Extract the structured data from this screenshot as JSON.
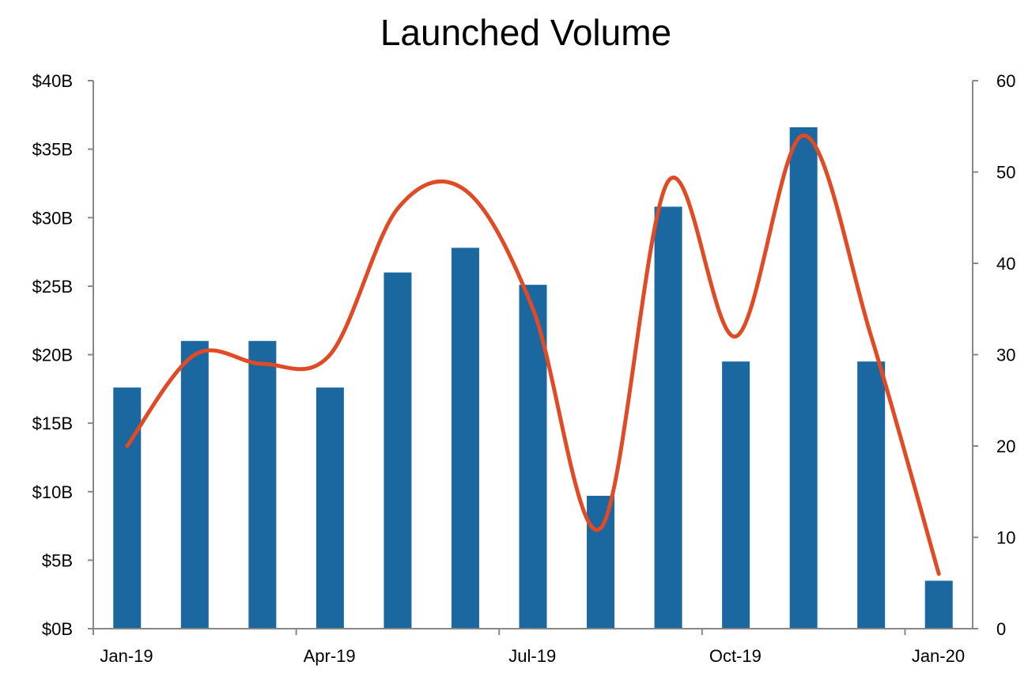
{
  "chart_data": {
    "type": "bar",
    "title": "Launched Volume",
    "x": [
      "Jan-19",
      "Feb-19",
      "Mar-19",
      "Apr-19",
      "May-19",
      "Jun-19",
      "Jul-19",
      "Aug-19",
      "Sep-19",
      "Oct-19",
      "Nov-19",
      "Dec-19",
      "Jan-20"
    ],
    "x_tick_labels": [
      "Jan-19",
      "Apr-19",
      "Jul-19",
      "Oct-19",
      "Jan-20"
    ],
    "series": [
      {
        "type": "bar",
        "axis": "left",
        "color": "#1b67a0",
        "values": [
          17.6,
          21.0,
          21.0,
          17.6,
          26.0,
          27.8,
          25.1,
          9.7,
          30.8,
          19.5,
          36.6,
          19.5,
          3.5
        ]
      },
      {
        "type": "line",
        "axis": "right",
        "color": "#e04a25",
        "smooth": true,
        "values": [
          20,
          30,
          29,
          30,
          46,
          48,
          35,
          11,
          49,
          32,
          54,
          32,
          6
        ]
      }
    ],
    "y_left": {
      "lim": [
        0,
        40
      ],
      "ticks": [
        0,
        5,
        10,
        15,
        20,
        25,
        30,
        35,
        40
      ],
      "tick_labels": [
        "$0B",
        "$5B",
        "$10B",
        "$15B",
        "$20B",
        "$25B",
        "$30B",
        "$35B",
        "$40B"
      ]
    },
    "y_right": {
      "lim": [
        0,
        60
      ],
      "ticks": [
        0,
        10,
        20,
        30,
        40,
        50,
        60
      ],
      "tick_labels": [
        "0",
        "10",
        "20",
        "30",
        "40",
        "50",
        "60"
      ]
    },
    "xlabel": "",
    "ylabel": "",
    "grid": false,
    "legend": "none"
  }
}
